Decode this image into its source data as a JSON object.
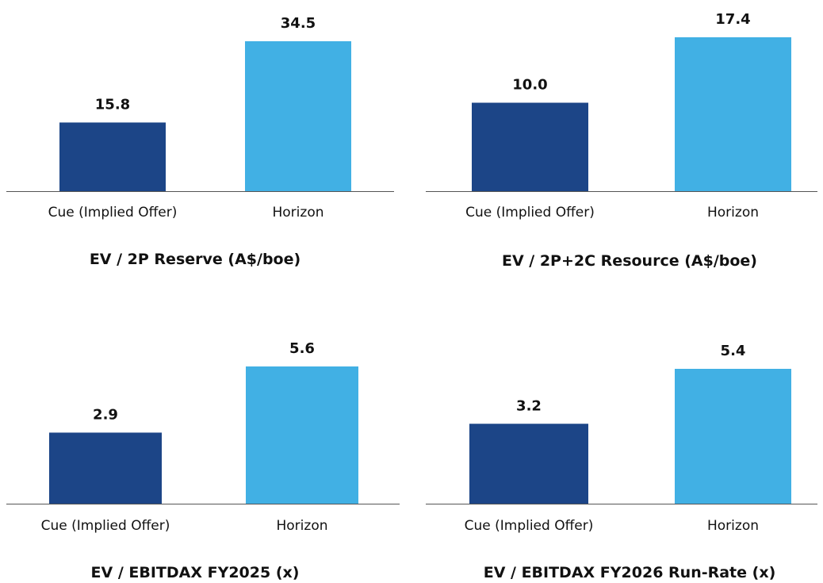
{
  "colors": {
    "cue": "#1C4587",
    "horizon": "#41B0E4",
    "axis": "#555555",
    "text": "#111111"
  },
  "chart_data": [
    {
      "type": "bar",
      "title": "EV / 2P Reserve (A$/boe)",
      "categories": [
        "Cue (Implied Offer)",
        "Horizon"
      ],
      "values": [
        15.8,
        34.5
      ],
      "data_labels": [
        "15.8",
        "34.5"
      ],
      "xlabel": "",
      "ylabel": "",
      "ylim": [
        0,
        34.5
      ],
      "grid": false
    },
    {
      "type": "bar",
      "title": "EV / 2P+2C Resource (A$/boe)",
      "categories": [
        "Cue (Implied Offer)",
        "Horizon"
      ],
      "values": [
        10.0,
        17.4
      ],
      "data_labels": [
        "10.0",
        "17.4"
      ],
      "xlabel": "",
      "ylabel": "",
      "ylim": [
        0,
        17.4
      ],
      "grid": false
    },
    {
      "type": "bar",
      "title": "EV / EBITDAX FY2025 (x)",
      "categories": [
        "Cue (Implied Offer)",
        "Horizon"
      ],
      "values": [
        2.9,
        5.6
      ],
      "data_labels": [
        "2.9",
        "5.6"
      ],
      "xlabel": "",
      "ylabel": "",
      "ylim": [
        0,
        5.6
      ],
      "grid": false
    },
    {
      "type": "bar",
      "title": "EV / EBITDAX FY2026 Run-Rate (x)",
      "categories": [
        "Cue (Implied Offer)",
        "Horizon"
      ],
      "values": [
        3.2,
        5.4
      ],
      "data_labels": [
        "3.2",
        "5.4"
      ],
      "xlabel": "",
      "ylabel": "",
      "ylim": [
        0,
        5.4
      ],
      "grid": false
    }
  ]
}
